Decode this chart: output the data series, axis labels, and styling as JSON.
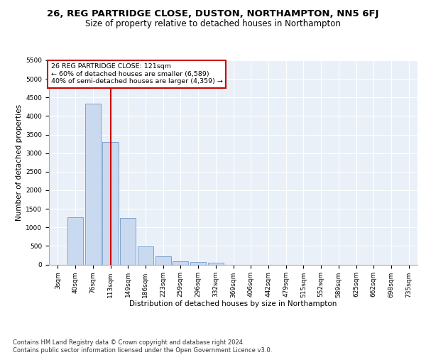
{
  "title1": "26, REG PARTRIDGE CLOSE, DUSTON, NORTHAMPTON, NN5 6FJ",
  "title2": "Size of property relative to detached houses in Northampton",
  "xlabel": "Distribution of detached houses by size in Northampton",
  "ylabel": "Number of detached properties",
  "categories": [
    "3sqm",
    "40sqm",
    "76sqm",
    "113sqm",
    "149sqm",
    "186sqm",
    "223sqm",
    "259sqm",
    "296sqm",
    "332sqm",
    "369sqm",
    "406sqm",
    "442sqm",
    "479sqm",
    "515sqm",
    "552sqm",
    "589sqm",
    "625sqm",
    "662sqm",
    "698sqm",
    "735sqm"
  ],
  "values": [
    0,
    1270,
    4340,
    3300,
    1260,
    490,
    215,
    90,
    65,
    50,
    0,
    0,
    0,
    0,
    0,
    0,
    0,
    0,
    0,
    0,
    0
  ],
  "bar_color": "#c9d9ef",
  "bar_edge_color": "#7099c7",
  "vline_x": 3,
  "vline_color": "#cc0000",
  "annotation_line1": "26 REG PARTRIDGE CLOSE: 121sqm",
  "annotation_line2": "← 60% of detached houses are smaller (6,589)",
  "annotation_line3": "40% of semi-detached houses are larger (4,359) →",
  "annotation_box_color": "#cc0000",
  "annotation_box_fill": "#ffffff",
  "ylim": [
    0,
    5500
  ],
  "yticks": [
    0,
    500,
    1000,
    1500,
    2000,
    2500,
    3000,
    3500,
    4000,
    4500,
    5000,
    5500
  ],
  "footer": "Contains HM Land Registry data © Crown copyright and database right 2024.\nContains public sector information licensed under the Open Government Licence v3.0.",
  "bg_color": "#ffffff",
  "plot_bg_color": "#eaf0f8",
  "title1_fontsize": 9.5,
  "title2_fontsize": 8.5,
  "axis_label_fontsize": 7.5,
  "tick_fontsize": 6.5,
  "footer_fontsize": 6.0
}
